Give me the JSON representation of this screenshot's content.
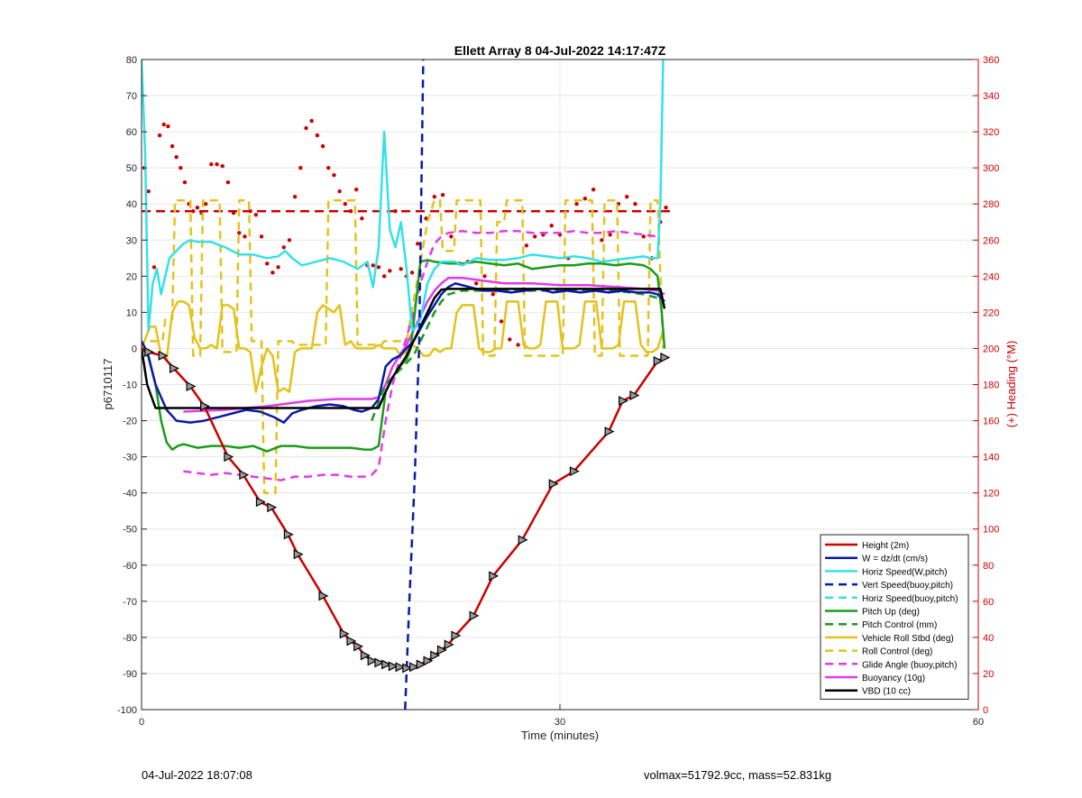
{
  "chart_data": {
    "type": "line",
    "title": "Ellett Array 8 04-Jul-2022 14:17:47Z",
    "xlabel": "Time (minutes)",
    "ylabel": "p6710117",
    "y2label": "(+) Heading (°M)",
    "xlim": [
      0,
      60
    ],
    "ylim": [
      -100,
      80
    ],
    "y2lim": [
      0,
      360
    ],
    "xticks": [
      0,
      30,
      60
    ],
    "yticks": [
      -100,
      -90,
      -80,
      -70,
      -60,
      -50,
      -40,
      -30,
      -20,
      -10,
      0,
      10,
      20,
      30,
      40,
      50,
      60,
      70,
      80
    ],
    "y2ticks": [
      0,
      20,
      40,
      60,
      80,
      100,
      120,
      140,
      160,
      180,
      200,
      220,
      240,
      260,
      280,
      300,
      320,
      340,
      360
    ],
    "grid": true,
    "legend_position": "bottom-right",
    "series": [
      {
        "name": "Height (2m)",
        "color": "#cc0000",
        "style": "solid",
        "width": 2.5,
        "axis": "left",
        "x": [
          0,
          0.5,
          1.5,
          2.3,
          3.5,
          4.5,
          6.2,
          7.3,
          8.5,
          9.3,
          10.5,
          11.2,
          13,
          14.5,
          15,
          15.5,
          16,
          16.5,
          17,
          17.5,
          18,
          18.5,
          19,
          19.5,
          20,
          20.5,
          21,
          21.5,
          22,
          22.5,
          23.8,
          25.2,
          27.3,
          29.5,
          31,
          33.5,
          34.5,
          35.3,
          37,
          37.5
        ],
        "y": [
          0,
          -1,
          -2,
          -5.5,
          -10.5,
          -16,
          -30,
          -35,
          -42.5,
          -44,
          -51.5,
          -57,
          -68.5,
          -79,
          -81,
          -82.5,
          -85,
          -86.5,
          -87,
          -87.5,
          -88,
          -88.2,
          -88.5,
          -88.2,
          -87.5,
          -86.5,
          -85,
          -83.5,
          -82,
          -79.5,
          -74,
          -63,
          -53,
          -37.5,
          -34,
          -23,
          -14.5,
          -13,
          -3.5,
          -2.5
        ]
      },
      {
        "name": "W = dz/dt (cm/s)",
        "color": "#0a1aa8",
        "style": "solid",
        "width": 2.5,
        "axis": "left",
        "x": [
          0,
          0.4,
          1,
          1.8,
          2.5,
          3.5,
          4.5,
          5.5,
          6.5,
          7.5,
          8.5,
          9.5,
          10.2,
          10.8,
          11.5,
          12.5,
          13.5,
          14.5,
          15.2,
          15.8,
          16.5,
          17,
          17.5,
          18,
          18.5,
          19,
          19.5,
          20.5,
          21.5,
          22,
          22.5,
          23.5,
          24.5,
          25.5,
          26.5,
          27.5,
          28.5,
          29.5,
          30.5,
          31.5,
          32.5,
          33.5,
          34.5,
          35.5,
          36.5,
          37,
          37.5
        ],
        "y": [
          2,
          -1,
          -10,
          -17,
          -20,
          -20.5,
          -20,
          -19,
          -18,
          -17,
          -17.5,
          -19,
          -20.5,
          -18,
          -17,
          -16,
          -15.5,
          -16,
          -17,
          -17.5,
          -16.5,
          -14,
          -5,
          -3,
          -2,
          0,
          2,
          9,
          15,
          17,
          18,
          17,
          16,
          16,
          15.5,
          16,
          16.5,
          15.5,
          16,
          15.5,
          16,
          15.5,
          16,
          15.5,
          15.5,
          15,
          13
        ]
      },
      {
        "name": "Horiz Speed(W,pitch)",
        "color": "#33e2e8",
        "style": "solid",
        "width": 2.5,
        "axis": "left",
        "x": [
          0,
          0.25,
          0.5,
          0.8,
          1.1,
          1.4,
          1.7,
          2,
          2.5,
          3,
          3.5,
          4,
          5,
          6,
          7,
          8,
          9,
          9.8,
          10.3,
          10.8,
          11.5,
          12.5,
          13.5,
          14.5,
          15.5,
          16.2,
          16.6,
          17,
          17.4,
          17.8,
          18.2,
          18.6,
          19,
          19.4,
          19.7,
          20,
          20.5,
          21,
          21.5,
          22,
          22.5,
          23,
          24,
          25,
          26,
          27,
          28,
          29,
          30,
          31,
          32,
          33,
          34,
          35,
          36,
          36.5,
          37,
          37.2,
          37.4
        ],
        "y": [
          80,
          55,
          5,
          18,
          22,
          15,
          20,
          25,
          27,
          29,
          30,
          29.5,
          29.5,
          28,
          26,
          26,
          25,
          25.5,
          27,
          25,
          23,
          24,
          25,
          24,
          22,
          24,
          17,
          28,
          60,
          33,
          28,
          35,
          22,
          5,
          6,
          8,
          18,
          22,
          24,
          24,
          24,
          23,
          25,
          24.5,
          24.5,
          25,
          26,
          25.5,
          25,
          25.5,
          25,
          24,
          24.5,
          25,
          25.5,
          25,
          25,
          40,
          80
        ]
      },
      {
        "name": "Vert Speed(buoy,pitch)",
        "color": "#0a1aa8",
        "style": "dashed",
        "width": 2.5,
        "axis": "left",
        "x": [
          18.9,
          19.2,
          19.6,
          19.75,
          19.9,
          20.2
        ],
        "y": [
          -100,
          -70,
          -35,
          -15,
          0,
          80
        ]
      },
      {
        "name": "Horiz Speed(buoy,pitch)",
        "color": "#33e2e8",
        "style": "dashed",
        "width": 2.5,
        "axis": "left",
        "x": [],
        "y": []
      },
      {
        "name": "Pitch Up (deg)",
        "color": "#1a9c1a",
        "style": "solid",
        "width": 2.5,
        "axis": "left",
        "x": [
          0,
          0.5,
          1,
          1.4,
          1.8,
          2.2,
          2.6,
          3,
          4,
          5,
          6,
          7,
          8,
          9,
          10,
          11,
          12,
          13,
          14,
          15,
          16,
          16.5,
          17,
          17.5,
          18,
          18.5,
          19,
          19.3,
          19.6,
          20,
          20.5,
          21,
          22,
          23,
          24,
          25,
          26,
          27,
          28,
          29,
          30,
          31,
          32,
          33,
          34,
          35,
          36,
          36.5,
          37,
          37.3,
          37.5
        ],
        "y": [
          0,
          -2,
          -10,
          -20,
          -26,
          -28,
          -27,
          -26.5,
          -27.5,
          -27,
          -27,
          -27.5,
          -27,
          -28.5,
          -27,
          -27,
          -27.5,
          -27.5,
          -27.5,
          -27.5,
          -28,
          -28,
          -27,
          -12,
          -8,
          -5,
          -3,
          0,
          10,
          24,
          24.5,
          24,
          23.5,
          23.5,
          24,
          23.5,
          23,
          23.5,
          22,
          22.5,
          23,
          23,
          23.5,
          23.5,
          23,
          23.5,
          23,
          22,
          20,
          10,
          0
        ]
      },
      {
        "name": "Pitch Control (mm)",
        "color": "#1a9c1a",
        "style": "dashed",
        "width": 2.5,
        "axis": "left",
        "x": [
          16.5,
          17,
          17.5,
          18,
          18.5,
          19,
          19.5,
          20,
          20.5,
          21,
          21.5,
          22,
          23,
          24,
          26,
          28,
          30,
          32,
          34,
          36,
          37,
          37.5
        ],
        "y": [
          -20,
          -15,
          -10,
          -8,
          -6,
          -4,
          -2,
          2,
          6,
          10,
          13,
          15,
          16,
          16,
          16,
          16,
          16,
          16,
          16,
          15,
          14,
          12
        ]
      },
      {
        "name": "Vehicle Roll Stbd (deg)",
        "color": "#e4c21c",
        "style": "solid",
        "width": 2.5,
        "axis": "left",
        "x": [
          0,
          0.6,
          1,
          1.4,
          1.8,
          2.2,
          2.6,
          3,
          3.4,
          3.8,
          4.2,
          4.6,
          5,
          5.4,
          5.8,
          6.2,
          6.6,
          7,
          7.4,
          7.8,
          8.2,
          8.6,
          9,
          9.4,
          9.8,
          10.2,
          10.6,
          11,
          11.4,
          11.8,
          12.2,
          12.6,
          13,
          13.4,
          13.8,
          14.2,
          14.6,
          15,
          15.4,
          15.8,
          16.2,
          16.6,
          17,
          17.4,
          17.8,
          18.2,
          18.6,
          19,
          19.4,
          19.8,
          20.2,
          20.6,
          21,
          21.4,
          21.8,
          22.2,
          22.6,
          23,
          23.4,
          23.8,
          24.2,
          24.6,
          25,
          25.4,
          25.8,
          26.2,
          26.6,
          27,
          27.4,
          27.8,
          28.2,
          28.6,
          29,
          29.4,
          29.8,
          30.2,
          30.6,
          31,
          31.4,
          31.8,
          32.2,
          32.6,
          33,
          33.4,
          33.8,
          34.2,
          34.6,
          35,
          35.4,
          35.8,
          36.2,
          36.6,
          37,
          37.4
        ],
        "y": [
          0,
          6,
          6,
          -2,
          -3,
          10,
          13,
          13,
          12,
          3,
          0,
          0,
          1,
          0,
          12,
          12,
          11,
          0,
          0,
          -1,
          -12,
          -5,
          0,
          -2,
          -12,
          -11,
          -12,
          -1,
          0,
          0,
          0,
          10,
          12,
          11,
          10,
          12,
          1,
          2,
          0,
          0,
          0,
          0,
          1,
          0,
          0,
          0,
          -2,
          -1,
          1,
          0,
          -2,
          -2,
          0,
          -1,
          0,
          0,
          10,
          12,
          12,
          12,
          0,
          -1,
          -1,
          0,
          0,
          13,
          13,
          13,
          1,
          0,
          0,
          1,
          13,
          13,
          13,
          0,
          0,
          0,
          1,
          13,
          13,
          13,
          0,
          0,
          0,
          1,
          13,
          13,
          13,
          1,
          -1,
          -1,
          0,
          5
        ]
      },
      {
        "name": "Roll Control (deg)",
        "color": "#e4c21c",
        "style": "dashed",
        "width": 2.5,
        "axis": "left",
        "x": [
          0.6,
          1.5,
          1.7,
          2.2,
          2.4,
          3.5,
          3.7,
          4.2,
          4.4,
          5.6,
          5.8,
          6.8,
          7,
          7.7,
          7.9,
          8.6,
          8.8,
          9.6,
          9.8,
          10.8,
          11,
          13.2,
          13.4,
          15.3,
          15.5,
          17.2,
          17.4,
          19,
          20.5,
          21,
          21.4,
          21.6,
          22.4,
          22.6,
          24.3,
          24.5,
          25.3,
          25.5,
          26,
          26.2,
          27.3,
          27.5,
          30.2,
          30.4,
          32.3,
          32.5,
          33,
          33.2,
          34.1,
          34.3,
          36.3,
          36.5,
          37,
          37.4
        ],
        "y": [
          2,
          2,
          8,
          8,
          41,
          41,
          -2,
          -2,
          41,
          41,
          -1,
          -1,
          41,
          41,
          2,
          2,
          -40,
          -40,
          2,
          2,
          1,
          1,
          41,
          41,
          1,
          1,
          2,
          2,
          35,
          41,
          41,
          27,
          27,
          41,
          41,
          -2,
          -2,
          35,
          35,
          41,
          41,
          -2,
          -2,
          41,
          41,
          -2,
          -2,
          41,
          41,
          -2,
          -2,
          41,
          41,
          0
        ]
      },
      {
        "name": "Glide Angle (buoy,pitch)",
        "color": "#e03ce8",
        "style": "dashed",
        "width": 2.5,
        "axis": "left",
        "x": [
          3,
          4,
          5,
          6,
          7,
          8,
          9,
          10,
          11,
          12,
          13,
          14,
          15,
          16,
          16.5,
          17,
          17.5,
          18,
          18.5,
          19,
          19.5,
          20,
          20.5,
          21,
          21.5,
          22,
          23,
          24,
          25,
          26,
          27,
          28,
          29,
          30,
          31,
          32,
          33,
          34,
          35,
          36,
          37
        ],
        "y": [
          -34,
          -34.5,
          -35,
          -34.5,
          -35,
          -35.5,
          -36,
          -36.5,
          -35.5,
          -35.5,
          -35,
          -35,
          -35.5,
          -35.5,
          -35,
          -33,
          -20,
          -10,
          -3,
          3,
          10,
          18,
          24,
          29,
          31,
          32,
          32.5,
          32,
          32,
          32.5,
          32.5,
          32,
          32,
          32,
          32.5,
          32,
          32,
          32.5,
          32,
          31.5,
          31
        ]
      },
      {
        "name": "Buoyancy (10g)",
        "color": "#e03ce8",
        "style": "solid",
        "width": 2.5,
        "axis": "left",
        "x": [
          3,
          6,
          9,
          12,
          14,
          16.5,
          17,
          17.5,
          18,
          18.5,
          19,
          19.5,
          20,
          20.5,
          21,
          21.5,
          22,
          22.5,
          23,
          24,
          25,
          26,
          28,
          30,
          32,
          34,
          36,
          37,
          37.5
        ],
        "y": [
          -17.5,
          -17,
          -16,
          -14.5,
          -14,
          -14,
          -13.5,
          -10,
          -5,
          -2,
          1,
          5,
          9,
          13,
          16,
          18,
          19.5,
          19.5,
          19.5,
          19,
          18.5,
          18,
          18,
          17.5,
          17.5,
          17,
          16.5,
          16,
          15
        ]
      },
      {
        "name": "VBD (10 cc)",
        "color": "#000000",
        "style": "solid",
        "width": 2.5,
        "axis": "left",
        "x": [
          0,
          0.4,
          1,
          16.5,
          17,
          17.5,
          18,
          18.5,
          19,
          19.5,
          20,
          20.5,
          21,
          21.5,
          22,
          23,
          30,
          36.5,
          37.2,
          37.5
        ],
        "y": [
          0,
          -10,
          -16.5,
          -16.5,
          -16.5,
          -12,
          -8,
          -5,
          -2,
          2,
          6,
          10,
          14,
          16.3,
          16.5,
          16.5,
          16.5,
          16.5,
          16.5,
          11
        ]
      }
    ],
    "heading_reference": {
      "color": "#cc0000",
      "style": "dashed",
      "value": 276,
      "axis": "right",
      "x_range": [
        0,
        38
      ]
    },
    "heading_points": {
      "color": "#cc0000",
      "axis": "right",
      "x": [
        0.2,
        0.5,
        0.9,
        1.3,
        1.6,
        1.9,
        2.2,
        2.5,
        2.8,
        3.1,
        3.4,
        3.7,
        4,
        4.3,
        4.6,
        5,
        5.4,
        5.8,
        6.2,
        6.6,
        7,
        7.4,
        7.8,
        8.2,
        8.6,
        9,
        9.4,
        9.8,
        10.2,
        10.6,
        11,
        11.4,
        11.8,
        12.2,
        12.6,
        13,
        13.4,
        13.8,
        14.2,
        14.6,
        15,
        15.4,
        15.8,
        16.2,
        16.6,
        17,
        17.4,
        17.8,
        18.2,
        18.6,
        19,
        19.4,
        19.8,
        20.4,
        21,
        21.6,
        22.2,
        22.8,
        23.4,
        24,
        24.6,
        25.2,
        25.8,
        26.4,
        27,
        27.6,
        28.2,
        28.8,
        29.4,
        30,
        30.6,
        31.2,
        31.8,
        32.4,
        33,
        33.6,
        34.2,
        34.8,
        35.4,
        36,
        36.6,
        37.2,
        37.6
      ],
      "y": [
        300,
        287,
        245,
        318,
        324,
        323,
        312,
        306,
        300,
        292,
        280,
        276,
        278,
        275,
        280,
        302,
        302,
        301,
        292,
        275,
        264,
        262,
        276,
        274,
        262,
        247,
        242,
        245,
        256,
        260,
        284,
        300,
        322,
        326,
        318,
        312,
        300,
        296,
        287,
        280,
        276,
        288,
        272,
        246,
        246,
        245,
        240,
        243,
        276,
        244,
        240,
        242,
        258,
        272,
        284,
        285,
        262,
        247,
        248,
        236,
        240,
        230,
        215,
        205,
        202,
        257,
        262,
        263,
        268,
        263,
        250,
        280,
        283,
        288,
        260,
        263,
        280,
        284,
        280,
        262,
        250,
        270,
        278
      ]
    }
  },
  "footer": {
    "date": "04-Jul-2022 18:07:08",
    "stats": "volmax=51792.9cc, mass=52.831kg"
  }
}
